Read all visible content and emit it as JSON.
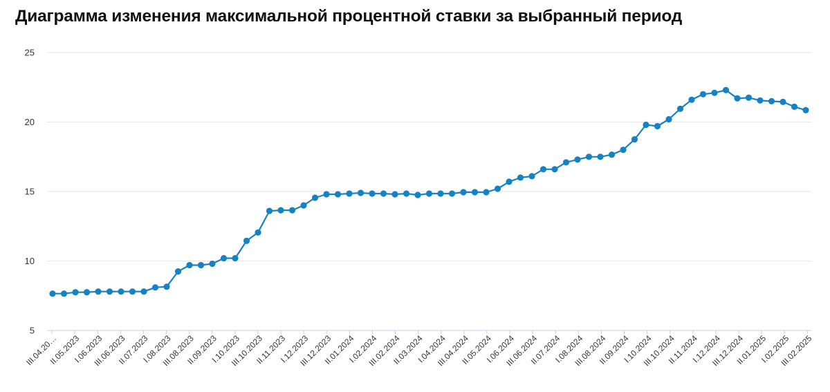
{
  "title": "Диаграмма изменения максимальной процентной ставки за выбранный период",
  "colors": {
    "line": "#1582c4",
    "grid": "#e6e6e6",
    "axis": "#c0d0e0"
  },
  "chart_data": {
    "type": "line",
    "title": "Диаграмма изменения максимальной процентной ставки за выбранный период",
    "xlabel": "",
    "ylabel": "",
    "ylim": [
      5,
      25
    ],
    "yticks": [
      5,
      10,
      15,
      20,
      25
    ],
    "grid": true,
    "legend": "none",
    "x_labels": [
      "III.04.20…",
      "II.05.2023",
      "I.06.2023",
      "III.06.2023",
      "II.07.2023",
      "I.08.2023",
      "III.08.2023",
      "II.09.2023",
      "I.10.2023",
      "III.10.2023",
      "II.11.2023",
      "I.12.2023",
      "III.12.2023",
      "II.01.2024",
      "I.02.2024",
      "III.02.2024",
      "II.03.2024",
      "I.04.2024",
      "III.04.2024",
      "II.05.2024",
      "I.06.2024",
      "III.06.2024",
      "II.07.2024",
      "I.08.2024",
      "III.08.2024",
      "II.09.2024",
      "I.10.2024",
      "III.10.2024",
      "II.11.2024",
      "I.12.2024",
      "III.12.2024",
      "II.01.2025",
      "I.02.2025",
      "III.02.2025"
    ],
    "series": [
      {
        "values": [
          7.65,
          7.65,
          7.75,
          7.75,
          7.8,
          7.8,
          7.8,
          7.8,
          7.8,
          8.1,
          8.15,
          9.25,
          9.7,
          9.7,
          9.8,
          10.2,
          10.2,
          11.45,
          12.05,
          13.6,
          13.65,
          13.65,
          14.0,
          14.55,
          14.8,
          14.8,
          14.85,
          14.9,
          14.85,
          14.85,
          14.8,
          14.85,
          14.75,
          14.85,
          14.85,
          14.85,
          14.95,
          14.95,
          14.95,
          15.2,
          15.7,
          16.0,
          16.1,
          16.6,
          16.6,
          17.1,
          17.3,
          17.5,
          17.5,
          17.65,
          18.0,
          18.75,
          19.8,
          19.7,
          20.2,
          20.95,
          21.6,
          22.0,
          22.1,
          22.3,
          21.7,
          21.75,
          21.55,
          21.5,
          21.45,
          21.1,
          20.85
        ]
      }
    ]
  }
}
